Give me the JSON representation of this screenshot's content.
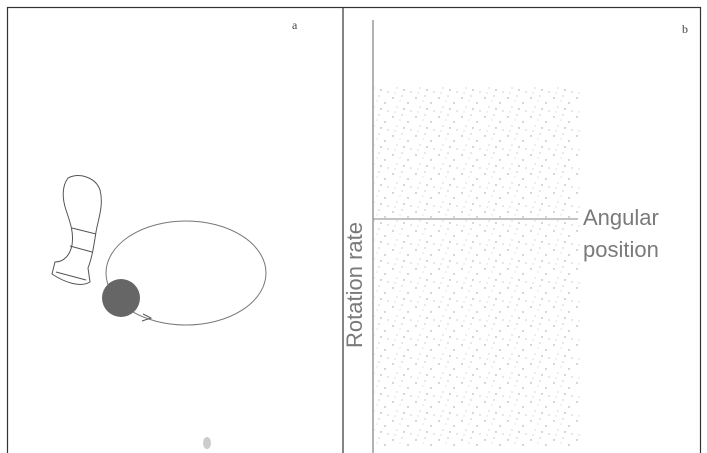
{
  "panels": [
    {
      "label": "a"
    },
    {
      "label": "b",
      "y_axis_label": "Rotation rate",
      "x_axis_label": "Angular position"
    }
  ]
}
